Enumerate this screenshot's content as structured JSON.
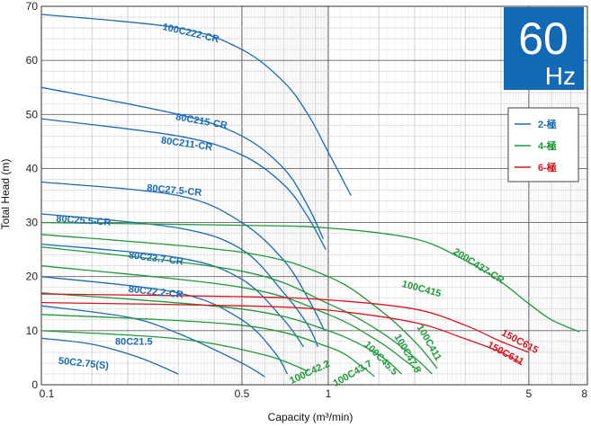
{
  "chart_data": {
    "type": "line",
    "xscale": "log",
    "xlabel": "Capacity (m³/min)",
    "ylabel": "Total Head (m)",
    "xlim": [
      0.1,
      8
    ],
    "ylim": [
      0,
      70
    ],
    "x_ticks": [
      {
        "value": 0.1,
        "label": "0.1"
      },
      {
        "value": 0.5,
        "label": "0.5"
      },
      {
        "value": 1,
        "label": "1"
      },
      {
        "value": 5,
        "label": "5"
      },
      {
        "value": 8,
        "label": "8"
      }
    ],
    "y_ticks": [
      0,
      10,
      20,
      30,
      40,
      50,
      60,
      70
    ],
    "badge": {
      "big": "60",
      "small": "Hz",
      "color": "#1469b5"
    },
    "legend": [
      {
        "label": "2-極",
        "color": "#1a6bb5"
      },
      {
        "label": "4-極",
        "color": "#1f9a3a"
      },
      {
        "label": "6-極",
        "color": "#d9141e"
      }
    ],
    "series": [
      {
        "name": "100C222-CR",
        "pole": "2-極",
        "color": "#1a6bb5",
        "points": [
          [
            0.1,
            68.5
          ],
          [
            0.3,
            66
          ],
          [
            0.5,
            62
          ],
          [
            0.7,
            56
          ],
          [
            0.85,
            50
          ],
          [
            1.0,
            43
          ],
          [
            1.2,
            35
          ]
        ]
      },
      {
        "name": "80C215-CR",
        "pole": "2-極",
        "color": "#1a6bb5",
        "points": [
          [
            0.1,
            55
          ],
          [
            0.3,
            50
          ],
          [
            0.5,
            46
          ],
          [
            0.7,
            40
          ],
          [
            0.85,
            33
          ],
          [
            0.96,
            27
          ]
        ]
      },
      {
        "name": "80C211-CR",
        "pole": "2-極",
        "color": "#1a6bb5",
        "points": [
          [
            0.1,
            49.2
          ],
          [
            0.3,
            46
          ],
          [
            0.5,
            42.5
          ],
          [
            0.7,
            37
          ],
          [
            0.85,
            31
          ],
          [
            0.98,
            25
          ]
        ]
      },
      {
        "name": "80C27.5-CR",
        "pole": "2-極",
        "color": "#1a6bb5",
        "points": [
          [
            0.1,
            37.5
          ],
          [
            0.3,
            35
          ],
          [
            0.5,
            30
          ],
          [
            0.7,
            23
          ],
          [
            0.85,
            16
          ],
          [
            0.97,
            10
          ]
        ]
      },
      {
        "name": "80C25.5-CR",
        "pole": "2-極",
        "color": "#1a6bb5",
        "points": [
          [
            0.1,
            31.6
          ],
          [
            0.3,
            29
          ],
          [
            0.5,
            25
          ],
          [
            0.7,
            17
          ],
          [
            0.85,
            11
          ],
          [
            0.92,
            7
          ]
        ]
      },
      {
        "name": "80C23.7-CR",
        "pole": "2-極",
        "color": "#1a6bb5",
        "points": [
          [
            0.1,
            26
          ],
          [
            0.3,
            23.5
          ],
          [
            0.5,
            19.5
          ],
          [
            0.7,
            12
          ],
          [
            0.82,
            7
          ]
        ]
      },
      {
        "name": "80C22.2-CR",
        "pole": "2-極",
        "color": "#1a6bb5",
        "points": [
          [
            0.1,
            20
          ],
          [
            0.3,
            17
          ],
          [
            0.5,
            12
          ],
          [
            0.65,
            6
          ],
          [
            0.72,
            2
          ]
        ]
      },
      {
        "name": "80C21.5",
        "pole": "2-極",
        "color": "#1a6bb5",
        "points": [
          [
            0.1,
            14.6
          ],
          [
            0.2,
            12.5
          ],
          [
            0.3,
            9.5
          ],
          [
            0.5,
            4
          ],
          [
            0.6,
            1.5
          ]
        ]
      },
      {
        "name": "50C2.75(S)",
        "pole": "2-極",
        "color": "#1a6bb5",
        "points": [
          [
            0.1,
            8.6
          ],
          [
            0.15,
            7.5
          ],
          [
            0.22,
            5
          ],
          [
            0.3,
            2
          ]
        ]
      },
      {
        "name": "200C437-CR",
        "pole": "4-極",
        "color": "#1f9a3a",
        "points": [
          [
            0.1,
            30
          ],
          [
            0.5,
            29.5
          ],
          [
            1,
            29
          ],
          [
            2,
            27
          ],
          [
            3,
            23
          ],
          [
            4,
            19
          ],
          [
            5,
            15
          ],
          [
            6,
            12
          ],
          [
            7.5,
            9.8
          ]
        ]
      },
      {
        "name": "100C415",
        "pole": "4-極",
        "color": "#1f9a3a",
        "points": [
          [
            0.1,
            27.8
          ],
          [
            0.5,
            24.5
          ],
          [
            1,
            20
          ],
          [
            1.5,
            14
          ],
          [
            2,
            8
          ],
          [
            2.4,
            3
          ]
        ]
      },
      {
        "name": "100C411",
        "pole": "4-極",
        "color": "#1f9a3a",
        "points": [
          [
            0.1,
            25.5
          ],
          [
            0.5,
            21
          ],
          [
            1,
            15
          ],
          [
            1.5,
            10
          ],
          [
            2,
            5
          ],
          [
            2.3,
            2
          ]
        ]
      },
      {
        "name": "100C47.5",
        "pole": "4-極",
        "color": "#1f9a3a",
        "points": [
          [
            0.1,
            22
          ],
          [
            0.5,
            18
          ],
          [
            1,
            13
          ],
          [
            1.5,
            8
          ],
          [
            1.9,
            4
          ],
          [
            2.1,
            2.5
          ]
        ]
      },
      {
        "name": "100C45.5",
        "pole": "4-極",
        "color": "#1f9a3a",
        "points": [
          [
            0.1,
            17
          ],
          [
            0.5,
            14
          ],
          [
            1,
            10
          ],
          [
            1.5,
            5.5
          ],
          [
            1.8,
            2
          ]
        ]
      },
      {
        "name": "100C43.7",
        "pole": "4-極",
        "color": "#1f9a3a",
        "points": [
          [
            0.1,
            13
          ],
          [
            0.5,
            11
          ],
          [
            1,
            7
          ],
          [
            1.3,
            3.5
          ],
          [
            1.45,
            1.5
          ]
        ]
      },
      {
        "name": "100C42.2",
        "pole": "4-極",
        "color": "#1f9a3a",
        "points": [
          [
            0.1,
            10
          ],
          [
            0.3,
            8.5
          ],
          [
            0.6,
            5.5
          ],
          [
            0.85,
            2.5
          ]
        ]
      },
      {
        "name": "150C615",
        "pole": "6-極",
        "color": "#d9141e",
        "points": [
          [
            0.1,
            16.8
          ],
          [
            0.5,
            16.3
          ],
          [
            1,
            15.7
          ],
          [
            2,
            14
          ],
          [
            3,
            11
          ],
          [
            4,
            8
          ],
          [
            5,
            6
          ]
        ]
      },
      {
        "name": "150C611",
        "pole": "6-極",
        "color": "#d9141e",
        "points": [
          [
            0.1,
            15.2
          ],
          [
            0.5,
            14.6
          ],
          [
            1,
            13.8
          ],
          [
            2,
            11.5
          ],
          [
            3,
            8.5
          ],
          [
            4,
            6
          ],
          [
            4.7,
            4
          ]
        ]
      }
    ]
  }
}
